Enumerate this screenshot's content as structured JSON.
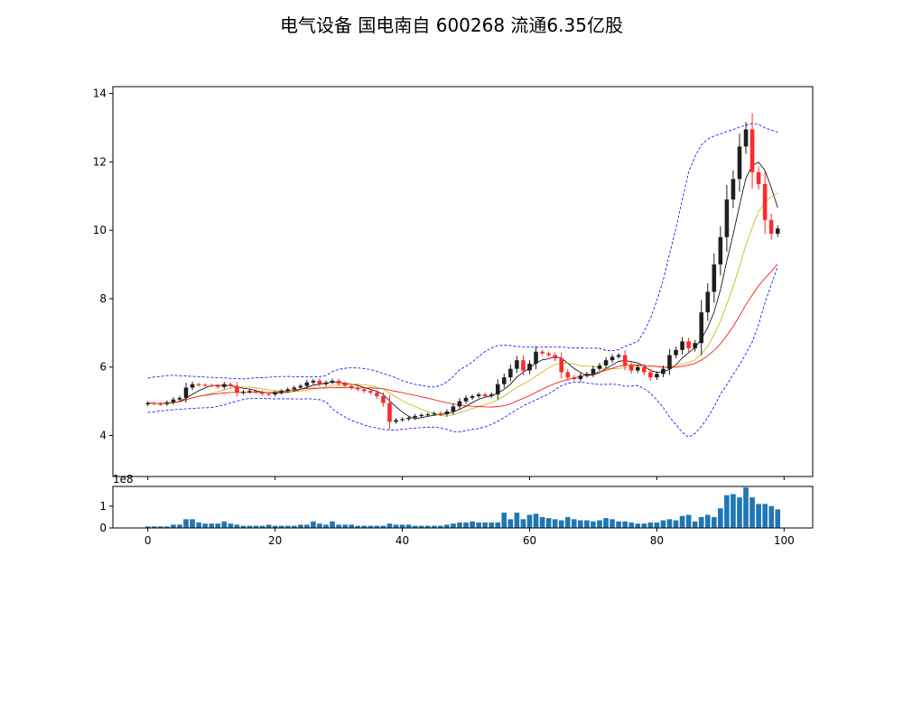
{
  "chart_data": {
    "type": "candlestick",
    "title": "电气设备 国电南自 600268 流通6.35亿股",
    "price_axis": {
      "ylim": [
        2.8,
        14.2
      ],
      "ticks": [
        4,
        6,
        8,
        10,
        12,
        14
      ]
    },
    "volume_axis": {
      "ylim": [
        0,
        1.9
      ],
      "ticks": [
        0,
        1
      ],
      "scale_label": "1e8"
    },
    "x_axis": {
      "xlim": [
        -5.5,
        104.5
      ],
      "ticks": [
        0,
        20,
        40,
        60,
        80,
        100
      ]
    },
    "colors": {
      "up": "#1f1f1f",
      "down": "#ff2a2a",
      "volume": "#1f77b4",
      "ma_fast": "#000000",
      "ma_mid": "#c8b400",
      "ma_slow": "#ff0000",
      "bollinger": "#0000ff"
    },
    "candles_close": [
      4.95,
      4.93,
      4.92,
      4.97,
      5.05,
      5.1,
      5.4,
      5.5,
      5.48,
      5.47,
      5.46,
      5.42,
      5.5,
      5.45,
      5.25,
      5.28,
      5.3,
      5.27,
      5.22,
      5.2,
      5.25,
      5.3,
      5.35,
      5.4,
      5.45,
      5.55,
      5.6,
      5.5,
      5.55,
      5.6,
      5.52,
      5.45,
      5.4,
      5.35,
      5.3,
      5.25,
      5.15,
      4.95,
      4.4,
      4.45,
      4.48,
      4.52,
      4.57,
      4.6,
      4.62,
      4.65,
      4.62,
      4.7,
      4.85,
      5.0,
      5.1,
      5.15,
      5.2,
      5.15,
      5.2,
      5.5,
      5.7,
      5.95,
      6.2,
      5.9,
      6.1,
      6.45,
      6.4,
      6.35,
      6.25,
      5.85,
      5.7,
      5.65,
      5.75,
      5.8,
      5.95,
      6.05,
      6.2,
      6.3,
      6.35,
      6.05,
      5.9,
      6.0,
      5.85,
      5.7,
      5.8,
      5.95,
      6.35,
      6.5,
      6.75,
      6.55,
      6.7,
      7.6,
      8.2,
      9.0,
      9.8,
      10.9,
      11.5,
      12.45,
      12.95,
      11.7,
      11.35,
      10.3,
      9.9,
      10.05
    ],
    "volume": [
      0.07,
      0.07,
      0.07,
      0.07,
      0.15,
      0.15,
      0.4,
      0.4,
      0.25,
      0.2,
      0.2,
      0.2,
      0.3,
      0.2,
      0.15,
      0.1,
      0.1,
      0.1,
      0.1,
      0.15,
      0.1,
      0.1,
      0.1,
      0.1,
      0.15,
      0.15,
      0.3,
      0.2,
      0.15,
      0.3,
      0.15,
      0.15,
      0.15,
      0.1,
      0.1,
      0.1,
      0.1,
      0.1,
      0.2,
      0.15,
      0.15,
      0.15,
      0.1,
      0.1,
      0.1,
      0.1,
      0.1,
      0.15,
      0.2,
      0.25,
      0.25,
      0.3,
      0.25,
      0.25,
      0.25,
      0.25,
      0.7,
      0.4,
      0.7,
      0.4,
      0.6,
      0.65,
      0.5,
      0.45,
      0.4,
      0.35,
      0.5,
      0.4,
      0.35,
      0.35,
      0.3,
      0.35,
      0.45,
      0.4,
      0.3,
      0.3,
      0.25,
      0.2,
      0.2,
      0.25,
      0.25,
      0.35,
      0.4,
      0.35,
      0.55,
      0.6,
      0.3,
      0.5,
      0.6,
      0.5,
      0.9,
      1.5,
      1.55,
      1.4,
      1.85,
      1.4,
      1.1,
      1.1,
      1.0,
      0.85
    ]
  }
}
